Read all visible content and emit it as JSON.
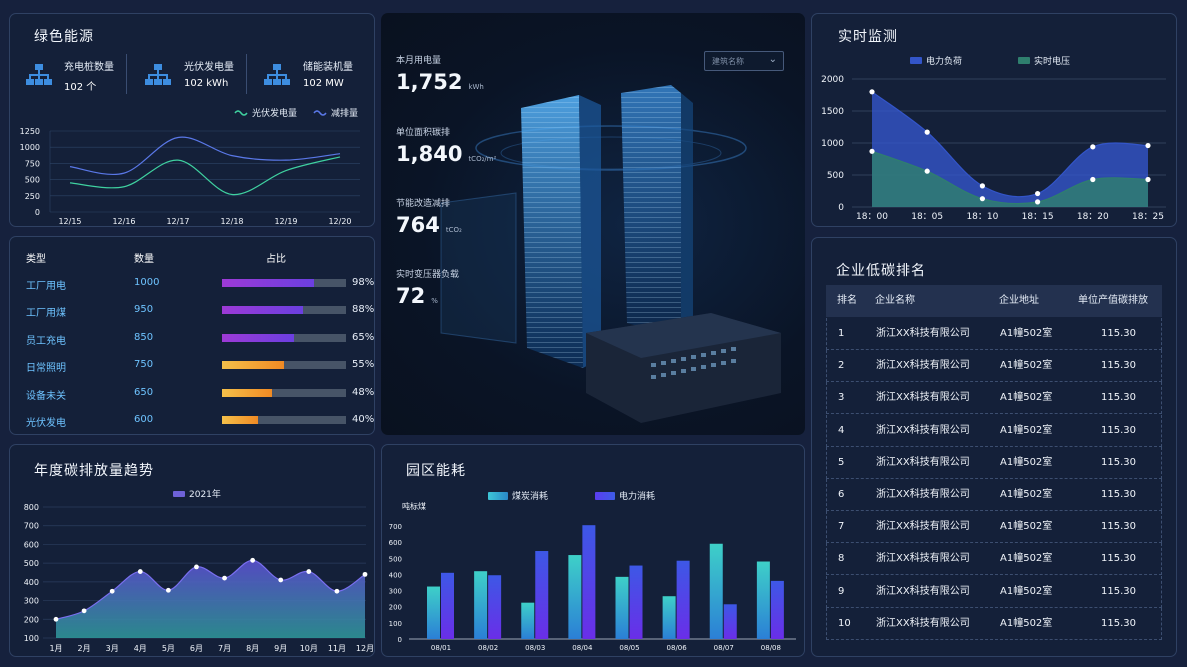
{
  "green": {
    "title": "绿色能源",
    "kpis": [
      {
        "label": "充电桩数量",
        "value": "102 个",
        "icon": "network-icon"
      },
      {
        "label": "光伏发电量",
        "value": "102 kWh",
        "icon": "network-icon"
      },
      {
        "label": "储能装机量",
        "value": "102 MW",
        "icon": "network-icon"
      }
    ],
    "legend": [
      "光伏发电量",
      "减排量"
    ]
  },
  "green_chart": {
    "type": "line",
    "x": [
      "12/15",
      "12/16",
      "12/17",
      "12/18",
      "12/19",
      "12/20"
    ],
    "ylim": [
      0,
      1250
    ],
    "yticks": [
      "0",
      "250",
      "500",
      "750",
      "1000",
      "1250"
    ],
    "series": [
      {
        "name": "光伏发电量",
        "values": [
          450,
          390,
          800,
          270,
          640,
          850
        ],
        "color": "#3fd1a0"
      },
      {
        "name": "减排量",
        "values": [
          700,
          600,
          1150,
          870,
          800,
          900
        ],
        "color": "#5a78e8"
      }
    ]
  },
  "usage": {
    "headers": [
      "类型",
      "数量",
      "占比"
    ],
    "rows": [
      {
        "type": "工厂用电",
        "count": "1000",
        "pct": "98%",
        "ratio": 0.74,
        "style": "purple"
      },
      {
        "type": "工厂用煤",
        "count": "950",
        "pct": "88%",
        "ratio": 0.65,
        "style": "purple"
      },
      {
        "type": "员工充电",
        "count": "850",
        "pct": "65%",
        "ratio": 0.58,
        "style": "purple"
      },
      {
        "type": "日常照明",
        "count": "750",
        "pct": "55%",
        "ratio": 0.5,
        "style": "orange"
      },
      {
        "type": "设备未关",
        "count": "650",
        "pct": "48%",
        "ratio": 0.4,
        "style": "orange"
      },
      {
        "type": "光伏发电",
        "count": "600",
        "pct": "40%",
        "ratio": 0.29,
        "style": "orange"
      }
    ]
  },
  "center": {
    "dropdown_placeholder": "建筑名称",
    "metrics": [
      {
        "label": "本月用电量",
        "value": "1,752",
        "unit": "kWh"
      },
      {
        "label": "单位面积碳排",
        "value": "1,840",
        "unit": "tCO₂/m²"
      },
      {
        "label": "节能改造减排",
        "value": "764",
        "unit": "tCO₂"
      },
      {
        "label": "实时变压器负载",
        "value": "72",
        "unit": "%"
      }
    ]
  },
  "realtime": {
    "title": "实时监测",
    "legend": [
      "电力负荷",
      "实时电压"
    ]
  },
  "realtime_chart": {
    "type": "area",
    "x": [
      "18：00",
      "18：05",
      "18：10",
      "18：15",
      "18：20",
      "18：25"
    ],
    "ylim": [
      0,
      2000
    ],
    "yticks": [
      "0",
      "500",
      "1000",
      "1500",
      "2000"
    ],
    "series": [
      {
        "name": "电力负荷",
        "values": [
          1800,
          1170,
          330,
          210,
          940,
          960
        ],
        "color": "#3355c9"
      },
      {
        "name": "实时电压",
        "values": [
          870,
          560,
          130,
          80,
          430,
          430
        ],
        "color": "#2f7f6e"
      }
    ]
  },
  "ranking": {
    "title": "企业低碳排名",
    "headers": [
      "排名",
      "企业名称",
      "企业地址",
      "单位产值碳排放"
    ],
    "rows": [
      [
        "1",
        "浙江XX科技有限公司",
        "A1幢502室",
        "115.30"
      ],
      [
        "2",
        "浙江XX科技有限公司",
        "A1幢502室",
        "115.30"
      ],
      [
        "3",
        "浙江XX科技有限公司",
        "A1幢502室",
        "115.30"
      ],
      [
        "4",
        "浙江XX科技有限公司",
        "A1幢502室",
        "115.30"
      ],
      [
        "5",
        "浙江XX科技有限公司",
        "A1幢502室",
        "115.30"
      ],
      [
        "6",
        "浙江XX科技有限公司",
        "A1幢502室",
        "115.30"
      ],
      [
        "7",
        "浙江XX科技有限公司",
        "A1幢502室",
        "115.30"
      ],
      [
        "8",
        "浙江XX科技有限公司",
        "A1幢502室",
        "115.30"
      ],
      [
        "9",
        "浙江XX科技有限公司",
        "A1幢502室",
        "115.30"
      ],
      [
        "10",
        "浙江XX科技有限公司",
        "A1幢502室",
        "115.30"
      ]
    ]
  },
  "annual": {
    "title": "年度碳排放量趋势",
    "legend": "2021年"
  },
  "annual_chart": {
    "type": "area",
    "x": [
      "1月",
      "2月",
      "3月",
      "4月",
      "5月",
      "6月",
      "7月",
      "8月",
      "9月",
      "10月",
      "11月",
      "12月"
    ],
    "ylim": [
      100,
      800
    ],
    "yticks": [
      "100",
      "200",
      "300",
      "400",
      "500",
      "600",
      "700",
      "800"
    ],
    "series": [
      {
        "name": "2021年",
        "values": [
          200,
          245,
          350,
          455,
          355,
          480,
          420,
          515,
          410,
          455,
          350,
          440
        ]
      }
    ]
  },
  "park": {
    "title": "园区能耗",
    "legend": [
      "煤炭消耗",
      "电力消耗"
    ],
    "ylabel": "吨标煤"
  },
  "park_chart": {
    "type": "bar",
    "categories": [
      "08/01",
      "08/02",
      "08/03",
      "08/04",
      "08/05",
      "08/06",
      "08/07",
      "08/08"
    ],
    "ylim": [
      0,
      700
    ],
    "yticks": [
      "0",
      "100",
      "200",
      "300",
      "400",
      "500",
      "600",
      "700"
    ],
    "series": [
      {
        "name": "煤炭消耗",
        "values": [
          325,
          420,
          225,
          520,
          385,
          265,
          590,
          480
        ]
      },
      {
        "name": "电力消耗",
        "values": [
          410,
          395,
          545,
          705,
          455,
          485,
          215,
          360
        ]
      }
    ]
  }
}
